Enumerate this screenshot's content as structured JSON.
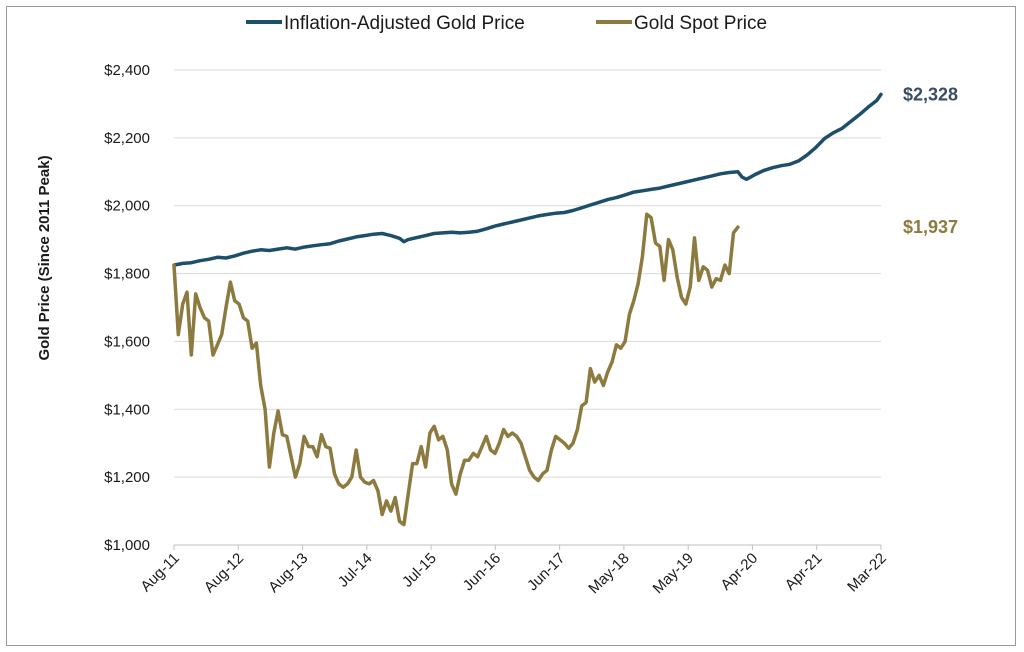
{
  "chart_data": {
    "type": "line",
    "ylabel": "Gold Price (Since 2011 Peak)",
    "xlabel": "",
    "ylim": [
      1000,
      2400
    ],
    "yticks": [
      "$1,000",
      "$1,200",
      "$1,400",
      "$1,600",
      "$1,800",
      "$2,000",
      "$2,200",
      "$2,400"
    ],
    "ytick_values": [
      1000,
      1200,
      1400,
      1600,
      1800,
      2000,
      2200,
      2400
    ],
    "x_tick_labels": [
      "Aug-11",
      "Aug-12",
      "Aug-13",
      "Jul-14",
      "Jul-15",
      "Jun-16",
      "Jun-17",
      "May-18",
      "May-19",
      "Apr-20",
      "Apr-21",
      "Mar-22"
    ],
    "x_range": [
      "Aug-11",
      "Mar-22"
    ],
    "grid": "horizontal",
    "legend_position": "top",
    "series": [
      {
        "name": "Inflation-Adjusted Gold Price",
        "color": "#1d4f6b",
        "end_label": "$2,328",
        "points": [
          [
            0,
            1825
          ],
          [
            2,
            1830
          ],
          [
            4,
            1832
          ],
          [
            6,
            1838
          ],
          [
            8,
            1842
          ],
          [
            10,
            1848
          ],
          [
            12,
            1846
          ],
          [
            14,
            1852
          ],
          [
            16,
            1860
          ],
          [
            18,
            1866
          ],
          [
            20,
            1870
          ],
          [
            22,
            1868
          ],
          [
            24,
            1872
          ],
          [
            26,
            1876
          ],
          [
            28,
            1872
          ],
          [
            30,
            1878
          ],
          [
            32,
            1882
          ],
          [
            34,
            1885
          ],
          [
            36,
            1888
          ],
          [
            38,
            1896
          ],
          [
            40,
            1902
          ],
          [
            42,
            1908
          ],
          [
            44,
            1912
          ],
          [
            46,
            1916
          ],
          [
            48,
            1918
          ],
          [
            50,
            1912
          ],
          [
            52,
            1904
          ],
          [
            53,
            1894
          ],
          [
            54,
            1900
          ],
          [
            56,
            1906
          ],
          [
            58,
            1912
          ],
          [
            60,
            1918
          ],
          [
            62,
            1920
          ],
          [
            64,
            1922
          ],
          [
            66,
            1920
          ],
          [
            68,
            1922
          ],
          [
            70,
            1925
          ],
          [
            72,
            1932
          ],
          [
            74,
            1940
          ],
          [
            76,
            1946
          ],
          [
            78,
            1952
          ],
          [
            80,
            1958
          ],
          [
            82,
            1964
          ],
          [
            84,
            1970
          ],
          [
            86,
            1974
          ],
          [
            88,
            1978
          ],
          [
            90,
            1980
          ],
          [
            92,
            1986
          ],
          [
            94,
            1994
          ],
          [
            96,
            2002
          ],
          [
            98,
            2010
          ],
          [
            100,
            2018
          ],
          [
            102,
            2024
          ],
          [
            104,
            2032
          ],
          [
            106,
            2040
          ],
          [
            108,
            2044
          ],
          [
            110,
            2048
          ],
          [
            112,
            2052
          ],
          [
            114,
            2058
          ],
          [
            116,
            2064
          ],
          [
            118,
            2070
          ],
          [
            120,
            2076
          ],
          [
            122,
            2082
          ],
          [
            124,
            2088
          ],
          [
            126,
            2094
          ],
          [
            128,
            2098
          ],
          [
            130,
            2100
          ],
          [
            131,
            2084
          ],
          [
            132,
            2078
          ],
          [
            134,
            2092
          ],
          [
            136,
            2104
          ],
          [
            138,
            2112
          ],
          [
            140,
            2118
          ],
          [
            142,
            2122
          ],
          [
            144,
            2132
          ],
          [
            146,
            2150
          ],
          [
            148,
            2172
          ],
          [
            150,
            2198
          ],
          [
            152,
            2215
          ],
          [
            154,
            2228
          ],
          [
            156,
            2248
          ],
          [
            158,
            2268
          ],
          [
            160,
            2290
          ],
          [
            162,
            2310
          ],
          [
            163,
            2328
          ]
        ]
      },
      {
        "name": "Gold Spot Price",
        "color": "#8c7a3e",
        "end_label": "$1,937",
        "points": [
          [
            0,
            1825
          ],
          [
            1,
            1620
          ],
          [
            2,
            1710
          ],
          [
            3,
            1745
          ],
          [
            4,
            1560
          ],
          [
            5,
            1740
          ],
          [
            6,
            1700
          ],
          [
            7,
            1670
          ],
          [
            8,
            1660
          ],
          [
            9,
            1560
          ],
          [
            10,
            1590
          ],
          [
            11,
            1620
          ],
          [
            12,
            1700
          ],
          [
            13,
            1775
          ],
          [
            14,
            1720
          ],
          [
            15,
            1710
          ],
          [
            16,
            1670
          ],
          [
            17,
            1660
          ],
          [
            18,
            1580
          ],
          [
            19,
            1595
          ],
          [
            20,
            1470
          ],
          [
            21,
            1400
          ],
          [
            22,
            1230
          ],
          [
            23,
            1330
          ],
          [
            24,
            1395
          ],
          [
            25,
            1325
          ],
          [
            26,
            1320
          ],
          [
            27,
            1260
          ],
          [
            28,
            1200
          ],
          [
            29,
            1240
          ],
          [
            30,
            1320
          ],
          [
            31,
            1290
          ],
          [
            32,
            1290
          ],
          [
            33,
            1260
          ],
          [
            34,
            1325
          ],
          [
            35,
            1290
          ],
          [
            36,
            1285
          ],
          [
            37,
            1210
          ],
          [
            38,
            1180
          ],
          [
            39,
            1170
          ],
          [
            40,
            1180
          ],
          [
            41,
            1200
          ],
          [
            42,
            1280
          ],
          [
            43,
            1200
          ],
          [
            44,
            1185
          ],
          [
            45,
            1180
          ],
          [
            46,
            1190
          ],
          [
            47,
            1160
          ],
          [
            48,
            1090
          ],
          [
            49,
            1130
          ],
          [
            50,
            1100
          ],
          [
            51,
            1140
          ],
          [
            52,
            1070
          ],
          [
            53,
            1060
          ],
          [
            54,
            1150
          ],
          [
            55,
            1240
          ],
          [
            56,
            1240
          ],
          [
            57,
            1290
          ],
          [
            58,
            1230
          ],
          [
            59,
            1330
          ],
          [
            60,
            1350
          ],
          [
            61,
            1310
          ],
          [
            62,
            1320
          ],
          [
            63,
            1280
          ],
          [
            64,
            1180
          ],
          [
            65,
            1150
          ],
          [
            66,
            1210
          ],
          [
            67,
            1250
          ],
          [
            68,
            1250
          ],
          [
            69,
            1270
          ],
          [
            70,
            1260
          ],
          [
            71,
            1290
          ],
          [
            72,
            1320
          ],
          [
            73,
            1280
          ],
          [
            74,
            1270
          ],
          [
            75,
            1300
          ],
          [
            76,
            1340
          ],
          [
            77,
            1320
          ],
          [
            78,
            1330
          ],
          [
            79,
            1320
          ],
          [
            80,
            1300
          ],
          [
            81,
            1260
          ],
          [
            82,
            1220
          ],
          [
            83,
            1200
          ],
          [
            84,
            1190
          ],
          [
            85,
            1210
          ],
          [
            86,
            1220
          ],
          [
            87,
            1280
          ],
          [
            88,
            1320
          ],
          [
            89,
            1310
          ],
          [
            90,
            1300
          ],
          [
            91,
            1285
          ],
          [
            92,
            1300
          ],
          [
            93,
            1340
          ],
          [
            94,
            1410
          ],
          [
            95,
            1420
          ],
          [
            96,
            1520
          ],
          [
            97,
            1480
          ],
          [
            98,
            1500
          ],
          [
            99,
            1470
          ],
          [
            100,
            1510
          ],
          [
            101,
            1540
          ],
          [
            102,
            1590
          ],
          [
            103,
            1580
          ],
          [
            104,
            1600
          ],
          [
            105,
            1680
          ],
          [
            106,
            1720
          ],
          [
            107,
            1770
          ],
          [
            108,
            1850
          ],
          [
            109,
            1975
          ],
          [
            110,
            1965
          ],
          [
            111,
            1890
          ],
          [
            112,
            1880
          ],
          [
            113,
            1780
          ],
          [
            114,
            1900
          ],
          [
            115,
            1870
          ],
          [
            116,
            1790
          ],
          [
            117,
            1730
          ],
          [
            118,
            1710
          ],
          [
            119,
            1760
          ],
          [
            120,
            1905
          ],
          [
            121,
            1780
          ],
          [
            122,
            1820
          ],
          [
            123,
            1810
          ],
          [
            124,
            1760
          ],
          [
            125,
            1785
          ],
          [
            126,
            1780
          ],
          [
            127,
            1825
          ],
          [
            128,
            1800
          ],
          [
            129,
            1920
          ],
          [
            130,
            1937
          ]
        ]
      }
    ]
  }
}
